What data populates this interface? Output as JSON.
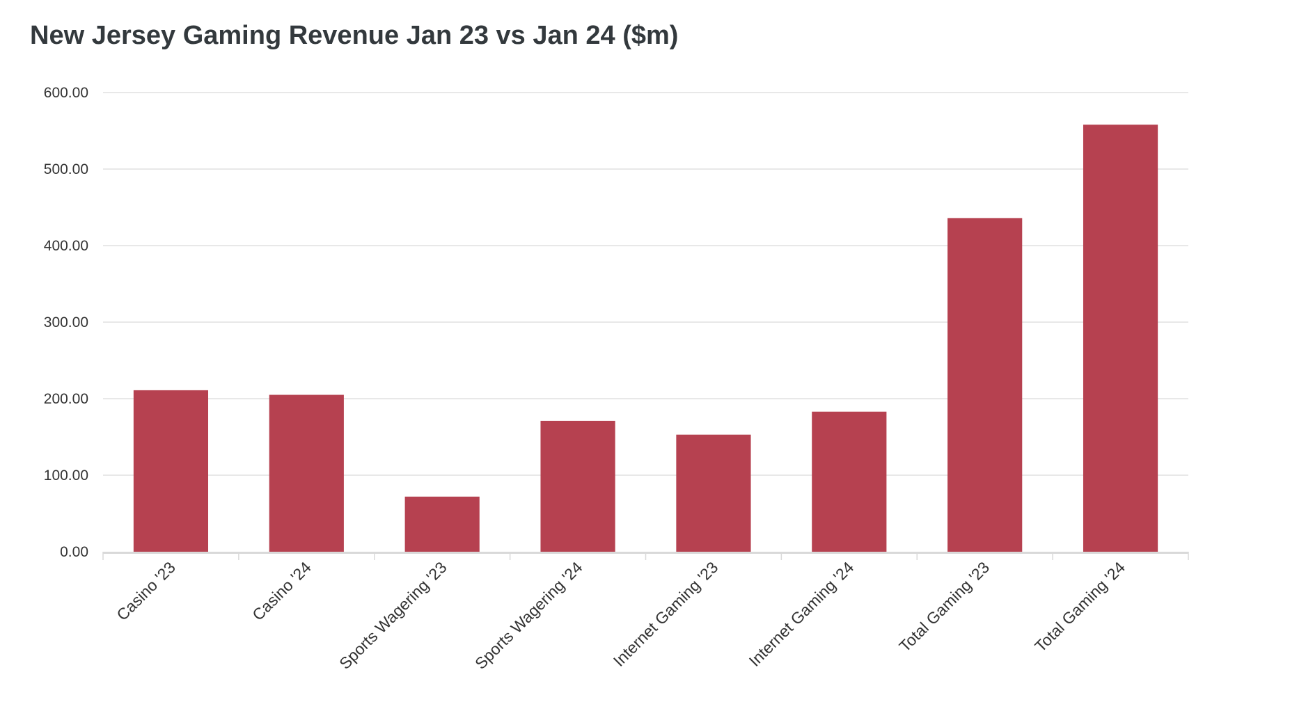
{
  "chart_data": {
    "type": "bar",
    "title": "New Jersey Gaming Revenue Jan 23 vs Jan 24 ($m)",
    "xlabel": "",
    "ylabel": "",
    "categories": [
      "Casino '23",
      "Casino '24",
      "Sports Wagering '23",
      "Sports Wagering '24",
      "Internet Gaming '23",
      "Internet Gaming '24",
      "Total Gaming '23",
      "Total Gaming '24"
    ],
    "values": [
      211,
      205,
      72,
      171,
      153,
      183,
      436,
      558
    ],
    "ylim": [
      0,
      600
    ],
    "yticks": [
      "0.00",
      "100.00",
      "200.00",
      "300.00",
      "400.00",
      "500.00",
      "600.00"
    ],
    "grid": true,
    "legend": "none",
    "colors": {
      "bar": "#b64150",
      "grid": "#e1e1e1",
      "axis": "#d9d9d9",
      "text": "#333333",
      "title": "#33393d"
    }
  }
}
